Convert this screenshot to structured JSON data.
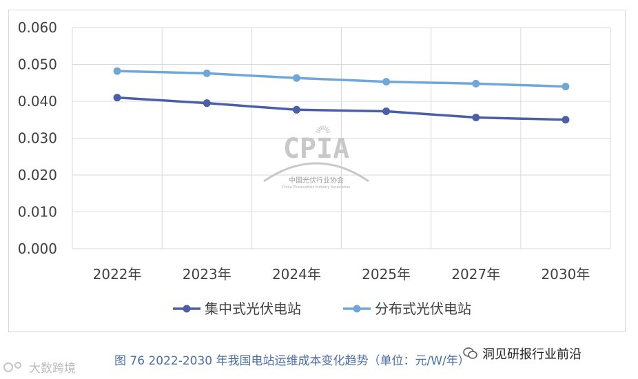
{
  "chart_data": {
    "type": "line",
    "categories": [
      "2022年",
      "2023年",
      "2024年",
      "2025年",
      "2027年",
      "2030年"
    ],
    "series": [
      {
        "name": "集中式光伏电站",
        "values": [
          0.041,
          0.0395,
          0.0377,
          0.0373,
          0.0356,
          0.035
        ],
        "color": "#4a5fa8"
      },
      {
        "name": "分布式光伏电站",
        "values": [
          0.0482,
          0.0476,
          0.0463,
          0.0453,
          0.0448,
          0.044
        ],
        "color": "#6fa8d8"
      }
    ],
    "yticks": [
      "0.000",
      "0.010",
      "0.020",
      "0.030",
      "0.040",
      "0.050",
      "0.060"
    ],
    "ylim": [
      0,
      0.06
    ],
    "grid": true,
    "legend_position": "bottom"
  },
  "watermark": {
    "logo": "CPIA",
    "org_cn": "中国光伏行业协会",
    "org_en": "China Photovoltaic Industry Association"
  },
  "caption": "图 76   2022-2030 年我国电站运维成本变化趋势（单位：元/W/年）",
  "source_tag": "洞见研报行业前沿",
  "bottom_watermark": "大数跨境"
}
